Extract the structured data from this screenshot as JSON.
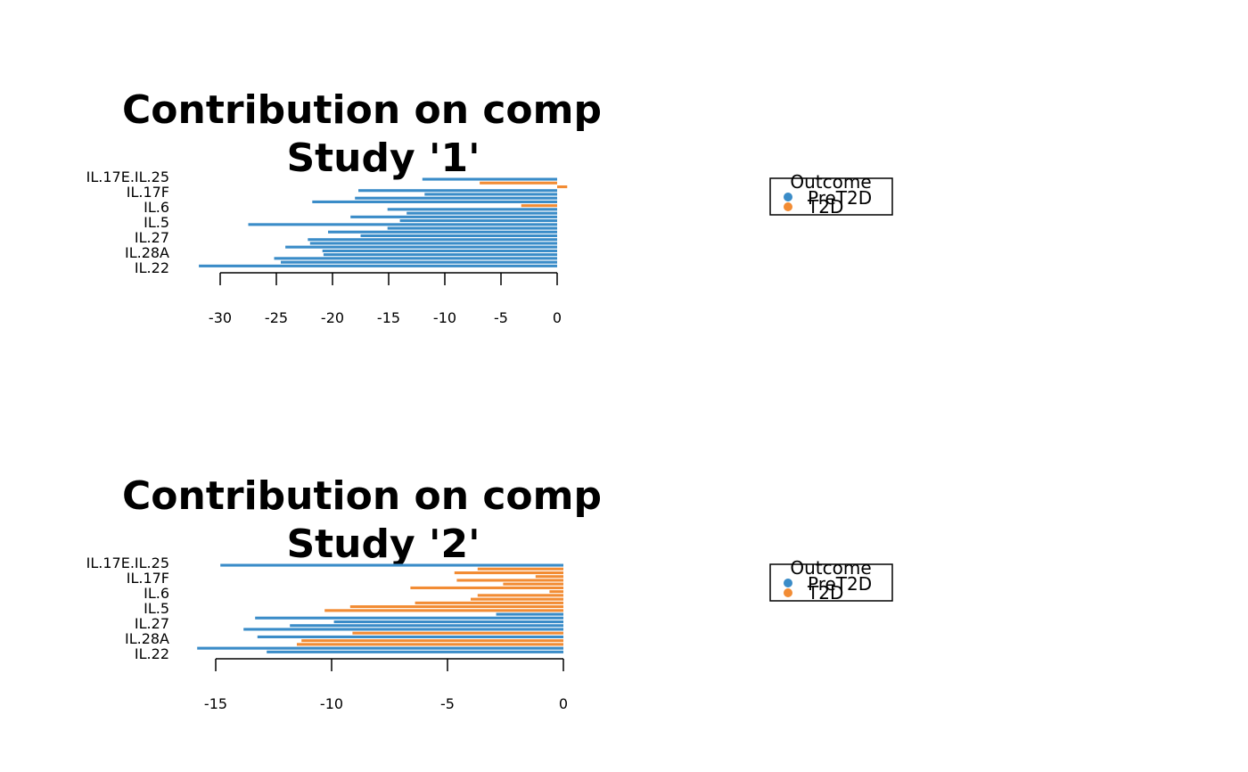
{
  "colors": {
    "PreT2D": "#3a8cc8",
    "T2D": "#f28c34"
  },
  "legend": {
    "title": "Outcome",
    "entries": [
      "PreT2D",
      "T2D"
    ]
  },
  "chart_data": [
    {
      "type": "bar",
      "orientation": "horizontal",
      "title_line1": "Contribution on comp",
      "title_line2": "Study '1'",
      "ytick_labels": [
        "IL.17E.IL.25",
        "IL.17F",
        "IL.6",
        "IL.5",
        "IL.27",
        "IL.28A",
        "IL.22"
      ],
      "xticks": [
        -30,
        -25,
        -20,
        -15,
        -10,
        -5,
        0
      ],
      "xlim": [
        -32,
        0.9
      ],
      "bars": [
        {
          "value": -12.0,
          "group": "PreT2D"
        },
        {
          "value": -6.9,
          "group": "T2D"
        },
        {
          "value": 0.9,
          "group": "T2D"
        },
        {
          "value": -17.7,
          "group": "PreT2D"
        },
        {
          "value": -11.8,
          "group": "PreT2D"
        },
        {
          "value": -18.0,
          "group": "PreT2D"
        },
        {
          "value": -21.8,
          "group": "PreT2D"
        },
        {
          "value": -3.2,
          "group": "T2D"
        },
        {
          "value": -15.1,
          "group": "PreT2D"
        },
        {
          "value": -13.4,
          "group": "PreT2D"
        },
        {
          "value": -18.4,
          "group": "PreT2D"
        },
        {
          "value": -14.0,
          "group": "PreT2D"
        },
        {
          "value": -27.5,
          "group": "PreT2D"
        },
        {
          "value": -15.1,
          "group": "PreT2D"
        },
        {
          "value": -20.4,
          "group": "PreT2D"
        },
        {
          "value": -17.5,
          "group": "PreT2D"
        },
        {
          "value": -22.2,
          "group": "PreT2D"
        },
        {
          "value": -22.0,
          "group": "PreT2D"
        },
        {
          "value": -24.2,
          "group": "PreT2D"
        },
        {
          "value": -20.9,
          "group": "PreT2D"
        },
        {
          "value": -20.8,
          "group": "PreT2D"
        },
        {
          "value": -25.2,
          "group": "PreT2D"
        },
        {
          "value": -24.6,
          "group": "PreT2D"
        },
        {
          "value": -31.9,
          "group": "PreT2D"
        }
      ]
    },
    {
      "type": "bar",
      "orientation": "horizontal",
      "title_line1": "Contribution on comp",
      "title_line2": "Study '2'",
      "ytick_labels": [
        "IL.17E.IL.25",
        "IL.17F",
        "IL.6",
        "IL.5",
        "IL.27",
        "IL.28A",
        "IL.22"
      ],
      "xticks": [
        -15,
        -10,
        -5,
        0
      ],
      "xlim": [
        -15.8,
        0
      ],
      "bars": [
        {
          "value": -14.8,
          "group": "PreT2D"
        },
        {
          "value": -3.7,
          "group": "T2D"
        },
        {
          "value": -4.7,
          "group": "T2D"
        },
        {
          "value": -1.2,
          "group": "T2D"
        },
        {
          "value": -4.6,
          "group": "T2D"
        },
        {
          "value": -2.6,
          "group": "T2D"
        },
        {
          "value": -6.6,
          "group": "T2D"
        },
        {
          "value": -0.6,
          "group": "T2D"
        },
        {
          "value": -3.7,
          "group": "T2D"
        },
        {
          "value": -4.0,
          "group": "T2D"
        },
        {
          "value": -6.4,
          "group": "T2D"
        },
        {
          "value": -9.2,
          "group": "T2D"
        },
        {
          "value": -10.3,
          "group": "T2D"
        },
        {
          "value": -2.9,
          "group": "PreT2D"
        },
        {
          "value": -13.3,
          "group": "PreT2D"
        },
        {
          "value": -9.9,
          "group": "PreT2D"
        },
        {
          "value": -11.8,
          "group": "PreT2D"
        },
        {
          "value": -13.8,
          "group": "PreT2D"
        },
        {
          "value": -9.1,
          "group": "T2D"
        },
        {
          "value": -13.2,
          "group": "PreT2D"
        },
        {
          "value": -11.3,
          "group": "T2D"
        },
        {
          "value": -11.5,
          "group": "T2D"
        },
        {
          "value": -15.8,
          "group": "PreT2D"
        },
        {
          "value": -12.8,
          "group": "PreT2D"
        }
      ]
    }
  ]
}
